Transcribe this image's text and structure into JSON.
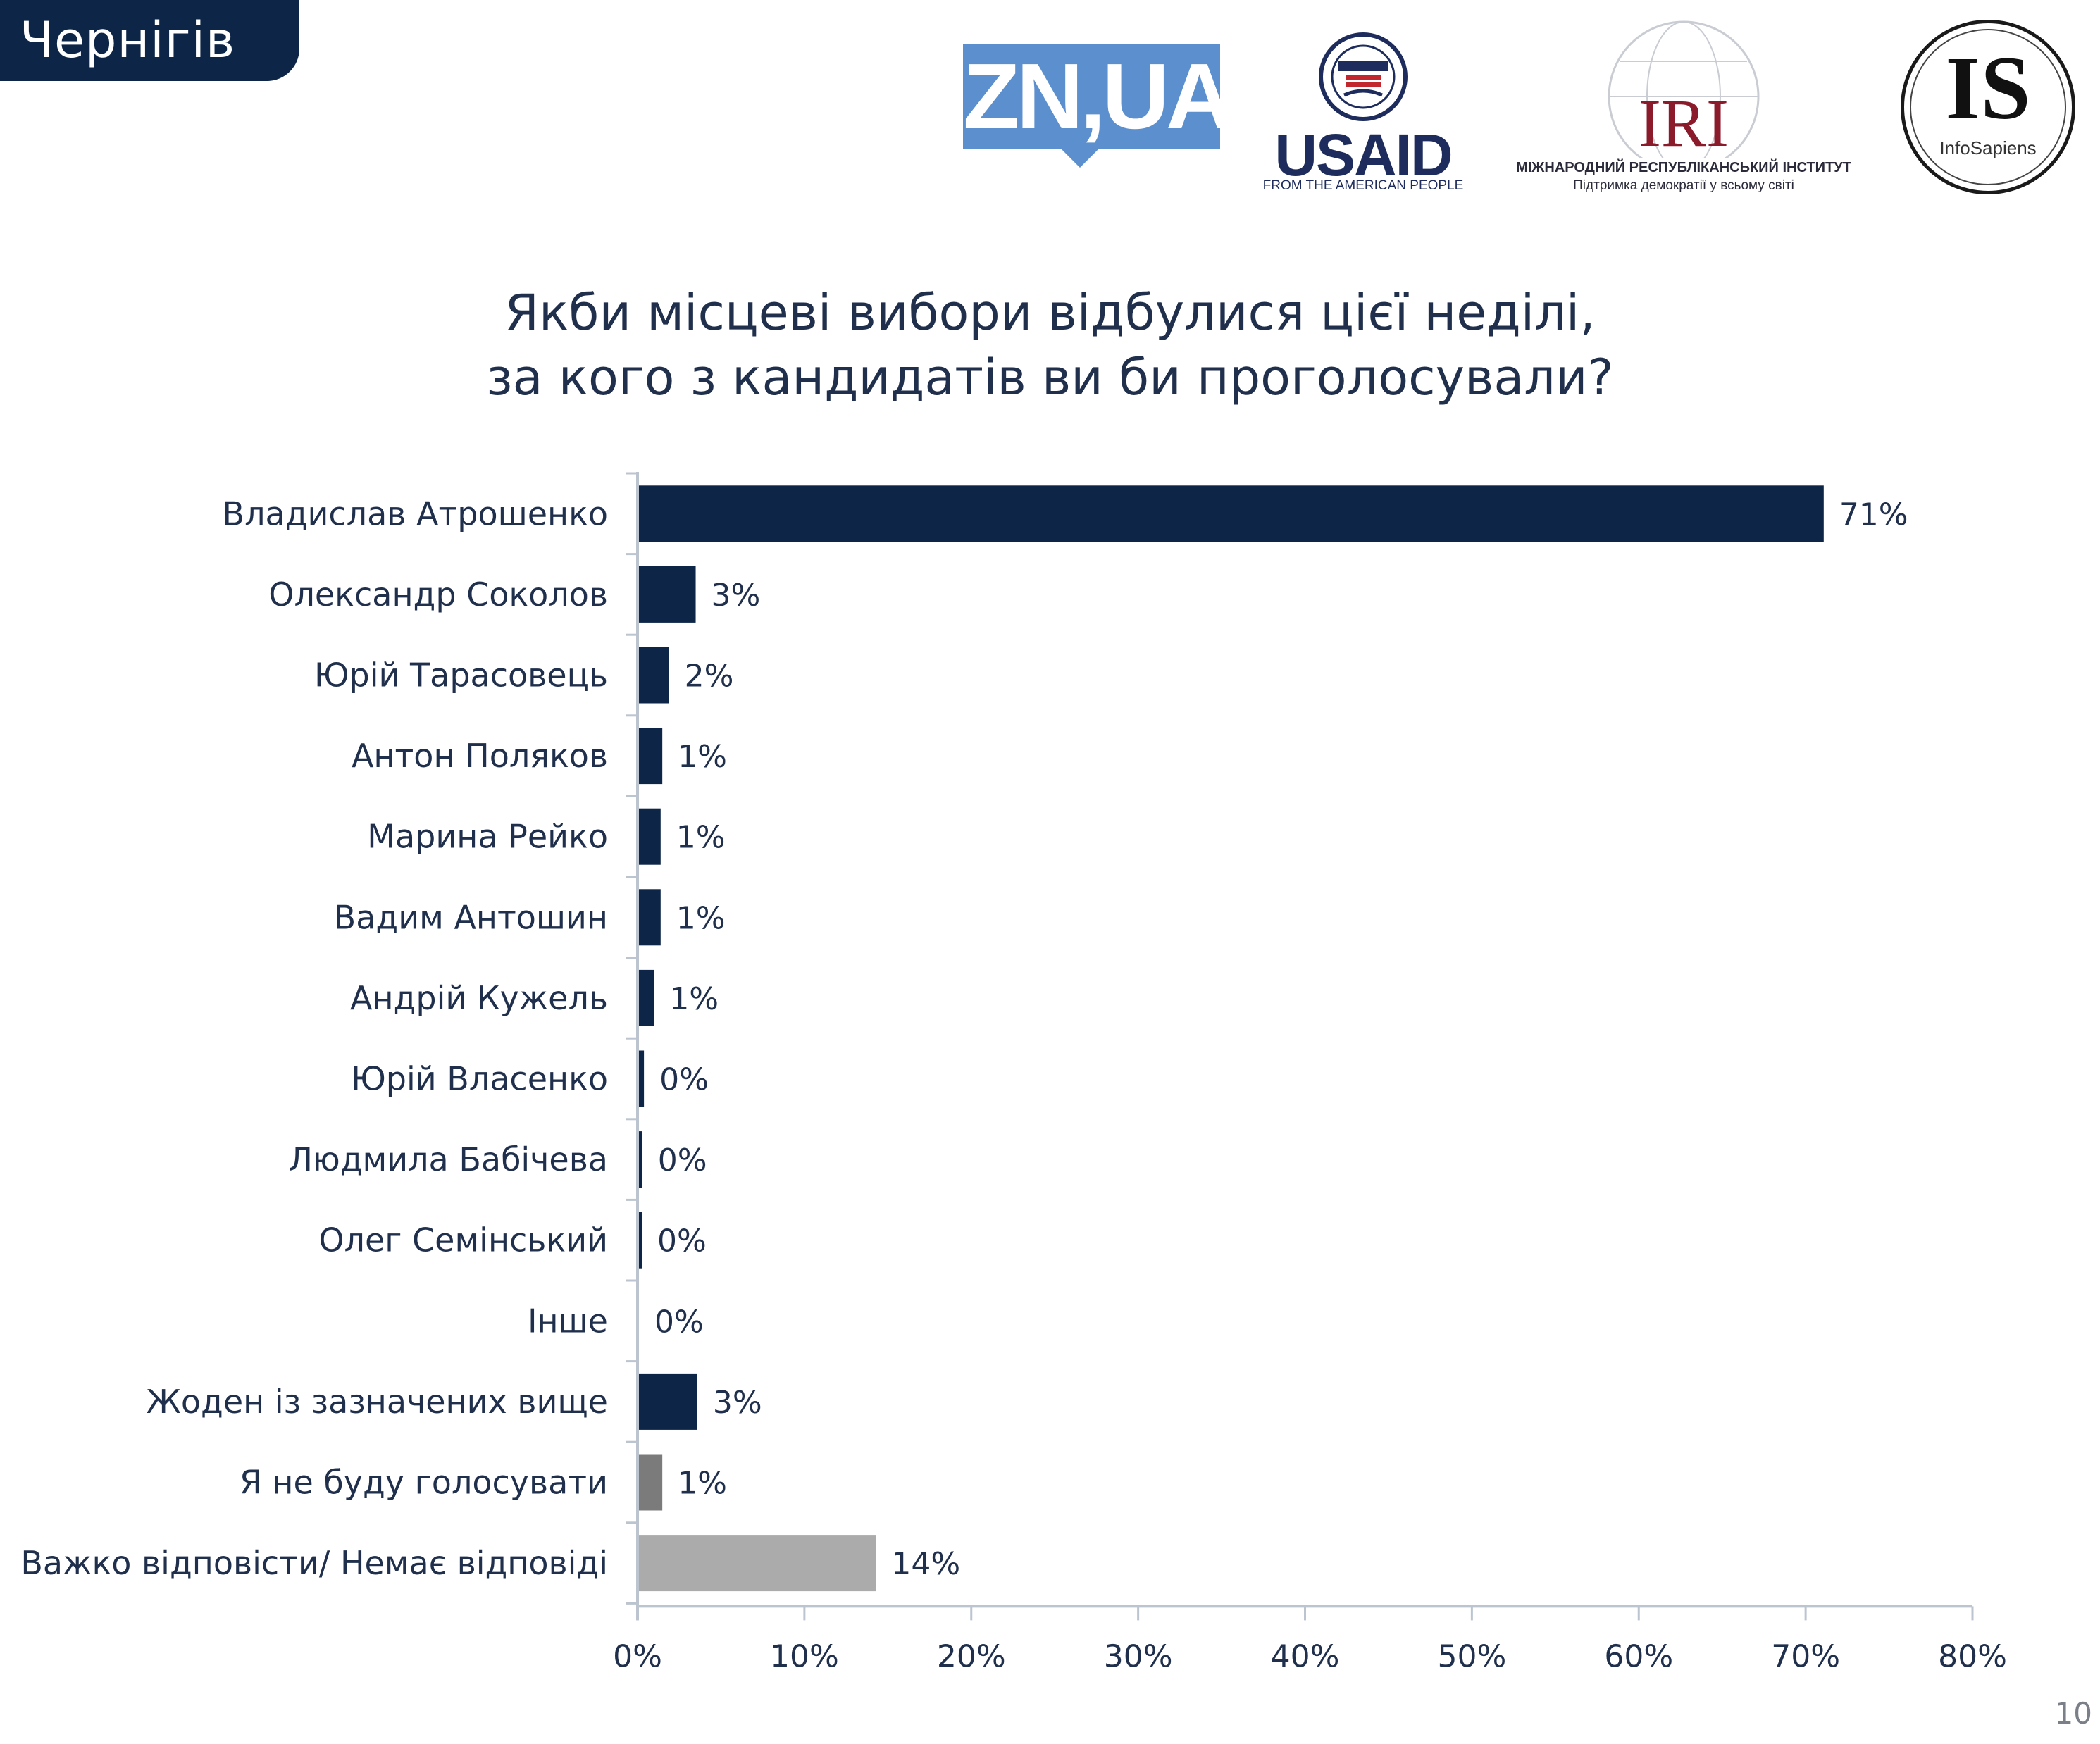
{
  "header": {
    "city_label": "Чернігів"
  },
  "logos": {
    "zn": "ZN,UA",
    "usaid_word": "USAID",
    "usaid_sub": "FROM THE AMERICAN PEOPLE",
    "iri_word": "IRI",
    "iri_line1": "МІЖНАРОДНИЙ РЕСПУБЛІКАНСЬКИЙ ІНСТИТУТ",
    "iri_line2": "Підтримка демократії у всьому світі",
    "is_word": "IS",
    "is_sub": "InfoSapiens"
  },
  "page_number": "10",
  "colors": {
    "candidate_bar": "#0d2547",
    "not_vote_bar": "#7b7b7b",
    "hard_to_say_bar": "#ababab",
    "axis": "#bcc4d0",
    "text": "#1f2f4c"
  },
  "chart_data": {
    "type": "bar",
    "orientation": "horizontal",
    "title": [
      "Якби місцеві вибори відбулися цієї неділі,",
      "за кого з кандидатів ви би проголосували?"
    ],
    "xlim": [
      0,
      80
    ],
    "xticks": [
      "0%",
      "10%",
      "20%",
      "30%",
      "40%",
      "50%",
      "60%",
      "70%",
      "80%"
    ],
    "grid": false,
    "categories": [
      "Владислав Атрошенко",
      "Олександр Соколов",
      "Юрій Тарасовець",
      "Антон Поляков",
      "Марина Рейко",
      "Вадим Антошин",
      "Андрій Кужель",
      "Юрій Власенко",
      "Людмила Бабічева",
      "Олег Семінський",
      "Інше",
      "Жоден із зазначених вище",
      "Я не буду голосувати",
      "Важко відповісти/ Немає відповіді"
    ],
    "values": [
      71,
      3.4,
      1.8,
      1.4,
      1.3,
      1.3,
      0.9,
      0.3,
      0.2,
      0.1,
      0.0,
      3.5,
      1.4,
      14.2
    ],
    "labels": [
      "71%",
      "3%",
      "2%",
      "1%",
      "1%",
      "1%",
      "1%",
      "0%",
      "0%",
      "0%",
      "0%",
      "3%",
      "1%",
      "14%"
    ],
    "bar_color_keys": [
      "candidate_bar",
      "candidate_bar",
      "candidate_bar",
      "candidate_bar",
      "candidate_bar",
      "candidate_bar",
      "candidate_bar",
      "candidate_bar",
      "candidate_bar",
      "candidate_bar",
      "candidate_bar",
      "candidate_bar",
      "not_vote_bar",
      "hard_to_say_bar"
    ]
  }
}
